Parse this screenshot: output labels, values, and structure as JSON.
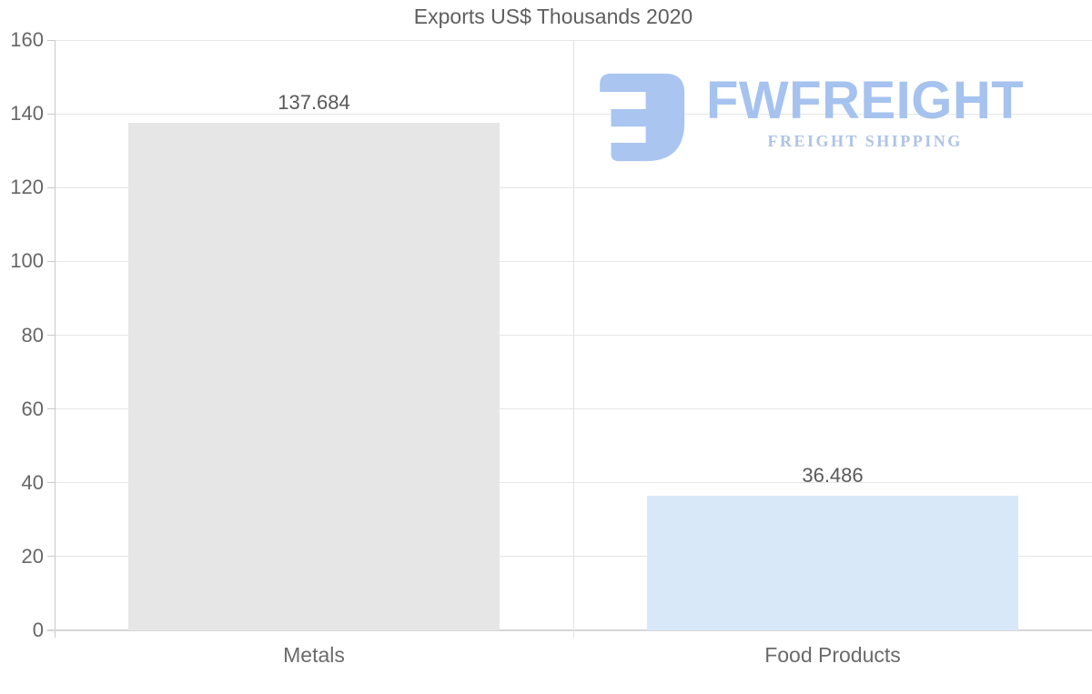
{
  "chart_data": {
    "type": "bar",
    "title": "Exports US$ Thousands 2020",
    "categories": [
      "Metals",
      "Food Products"
    ],
    "values": [
      137.684,
      36.486
    ],
    "value_labels": [
      "137.684",
      "36.486"
    ],
    "bar_colors": [
      "#e6e6e6",
      "#d8e8f9"
    ],
    "xlabel": "",
    "ylabel": "",
    "ylim": [
      0,
      160
    ],
    "ytick_step": 20,
    "ytick_labels": [
      "0",
      "20",
      "40",
      "60",
      "80",
      "100",
      "120",
      "140",
      "160"
    ],
    "grid": true,
    "legend": "none"
  },
  "logo": {
    "icon": "fwfreight-mark-icon",
    "brand": "FWFREIGHT",
    "tagline": "FREIGHT SHIPPING",
    "brand_color": "#a6c2ee",
    "tagline_color": "#aec3e6"
  },
  "colors": {
    "text": "#595959",
    "gridline": "#e6e6e6",
    "axis": "#c9c9c9",
    "bottom_axis": "#d6d6d6"
  }
}
